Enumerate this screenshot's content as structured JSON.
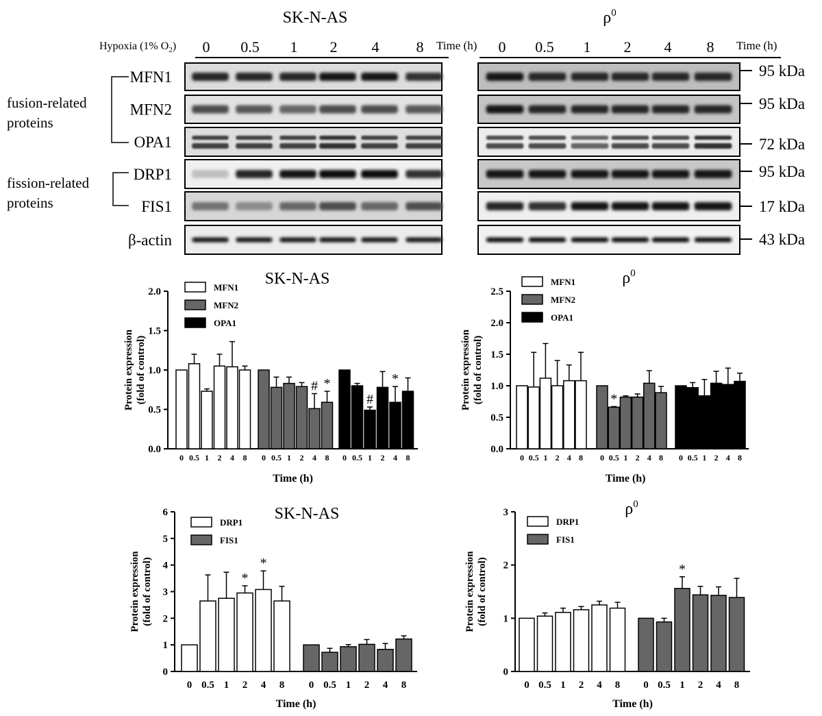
{
  "blots": {
    "left_title": "SK-N-AS",
    "right_title": "ρ",
    "right_title_sup": "0",
    "hypoxia_label": "Hypoxia (1% O",
    "hypoxia_sub": "2",
    "hypoxia_close": ")",
    "time_labels": [
      "0",
      "0.5",
      "1",
      "2",
      "4",
      "8"
    ],
    "time_unit": "Time (h)",
    "rows": [
      "MFN1",
      "MFN2",
      "OPA1",
      "DRP1",
      "FIS1",
      "β-actin"
    ],
    "groups": [
      {
        "line1": "fusion-related",
        "line2": "proteins"
      },
      {
        "line1": "fission-related",
        "line2": "proteins"
      }
    ],
    "kda": [
      "95 kDa",
      "95 kDa",
      "72 kDa",
      "95 kDa",
      "17 kDa",
      "43 kDa"
    ]
  },
  "chart_data": [
    {
      "type": "bar",
      "title": "SK-N-AS",
      "xlabel": "Time (h)",
      "ylabel": "Protein expression (fold of control)",
      "ylim": [
        0,
        2.0
      ],
      "yticks": [
        "0.0",
        "0.5",
        "1.0",
        "1.5",
        "2.0"
      ],
      "categories": [
        "0",
        "0.5",
        "1",
        "2",
        "4",
        "8"
      ],
      "legend_position": "top-left",
      "series": [
        {
          "name": "MFN1",
          "color": "#ffffff",
          "values": [
            1.0,
            1.08,
            0.73,
            1.05,
            1.04,
            1.0
          ],
          "errors": [
            0,
            0.12,
            0.03,
            0.15,
            0.32,
            0.05
          ],
          "marks": [
            "",
            "",
            "",
            "",
            "",
            ""
          ]
        },
        {
          "name": "MFN2",
          "color": "#666666",
          "values": [
            1.0,
            0.78,
            0.83,
            0.79,
            0.51,
            0.59
          ],
          "errors": [
            0,
            0.13,
            0.08,
            0.05,
            0.19,
            0.14
          ],
          "marks": [
            "",
            "",
            "",
            "",
            "#",
            "*"
          ]
        },
        {
          "name": "OPA1",
          "color": "#000000",
          "values": [
            1.0,
            0.8,
            0.49,
            0.78,
            0.59,
            0.73
          ],
          "errors": [
            0,
            0.03,
            0.04,
            0.2,
            0.2,
            0.17
          ],
          "marks": [
            "",
            "",
            "#",
            "",
            "*",
            ""
          ]
        }
      ]
    },
    {
      "type": "bar",
      "title": "ρ",
      "title_sup": "0",
      "xlabel": "Time (h)",
      "ylabel": "Protein expression (fold of control)",
      "ylim": [
        0,
        2.5
      ],
      "yticks": [
        "0.0",
        "0.5",
        "1.0",
        "1.5",
        "2.0",
        "2.5"
      ],
      "categories": [
        "0",
        "0.5",
        "1",
        "2",
        "4",
        "8"
      ],
      "legend_position": "top-left",
      "series": [
        {
          "name": "MFN1",
          "color": "#ffffff",
          "values": [
            1.0,
            0.98,
            1.12,
            1.0,
            1.08,
            1.08
          ],
          "errors": [
            0,
            0.55,
            0.55,
            0.4,
            0.25,
            0.45
          ],
          "marks": [
            "",
            "",
            "",
            "",
            "",
            ""
          ]
        },
        {
          "name": "MFN2",
          "color": "#666666",
          "values": [
            1.0,
            0.66,
            0.82,
            0.82,
            1.04,
            0.89
          ],
          "errors": [
            0,
            0.01,
            0.02,
            0.05,
            0.2,
            0.1
          ],
          "marks": [
            "",
            "*",
            "",
            "",
            "",
            ""
          ]
        },
        {
          "name": "OPA1",
          "color": "#000000",
          "values": [
            1.0,
            0.97,
            0.84,
            1.04,
            1.02,
            1.07
          ],
          "errors": [
            0,
            0.08,
            0.26,
            0.19,
            0.26,
            0.13
          ],
          "marks": [
            "",
            "",
            "",
            "",
            "",
            ""
          ]
        }
      ]
    },
    {
      "type": "bar",
      "title": "SK-N-AS",
      "xlabel": "Time (h)",
      "ylabel": "Protein expression (fold of control)",
      "ylim": [
        0,
        6
      ],
      "yticks": [
        "0",
        "1",
        "2",
        "3",
        "4",
        "5",
        "6"
      ],
      "categories": [
        "0",
        "0.5",
        "1",
        "2",
        "4",
        "8"
      ],
      "legend_position": "top-left",
      "series": [
        {
          "name": "DRP1",
          "color": "#ffffff",
          "values": [
            1.0,
            2.65,
            2.75,
            2.95,
            3.08,
            2.65
          ],
          "errors": [
            0,
            0.98,
            0.98,
            0.27,
            0.7,
            0.55
          ],
          "marks": [
            "",
            "",
            "",
            "*",
            "*",
            ""
          ]
        },
        {
          "name": "FIS1",
          "color": "#666666",
          "values": [
            1.0,
            0.72,
            0.93,
            1.02,
            0.83,
            1.22
          ],
          "errors": [
            0,
            0.15,
            0.08,
            0.18,
            0.22,
            0.12
          ],
          "marks": [
            "",
            "",
            "",
            "",
            "",
            ""
          ]
        }
      ]
    },
    {
      "type": "bar",
      "title": "ρ",
      "title_sup": "0",
      "xlabel": "Time (h)",
      "ylabel": "Protein expression (fold of control)",
      "ylim": [
        0,
        3
      ],
      "yticks": [
        "0",
        "1",
        "2",
        "3"
      ],
      "categories": [
        "0",
        "0.5",
        "1",
        "2",
        "4",
        "8"
      ],
      "legend_position": "top-left",
      "series": [
        {
          "name": "DRP1",
          "color": "#ffffff",
          "values": [
            1.0,
            1.04,
            1.11,
            1.16,
            1.25,
            1.19
          ],
          "errors": [
            0,
            0.06,
            0.08,
            0.06,
            0.07,
            0.11
          ],
          "marks": [
            "",
            "",
            "",
            "",
            "",
            ""
          ]
        },
        {
          "name": "FIS1",
          "color": "#666666",
          "values": [
            1.0,
            0.93,
            1.56,
            1.44,
            1.43,
            1.39
          ],
          "errors": [
            0,
            0.07,
            0.22,
            0.16,
            0.16,
            0.36
          ],
          "marks": [
            "",
            "",
            "*",
            "",
            "",
            ""
          ]
        }
      ]
    }
  ]
}
